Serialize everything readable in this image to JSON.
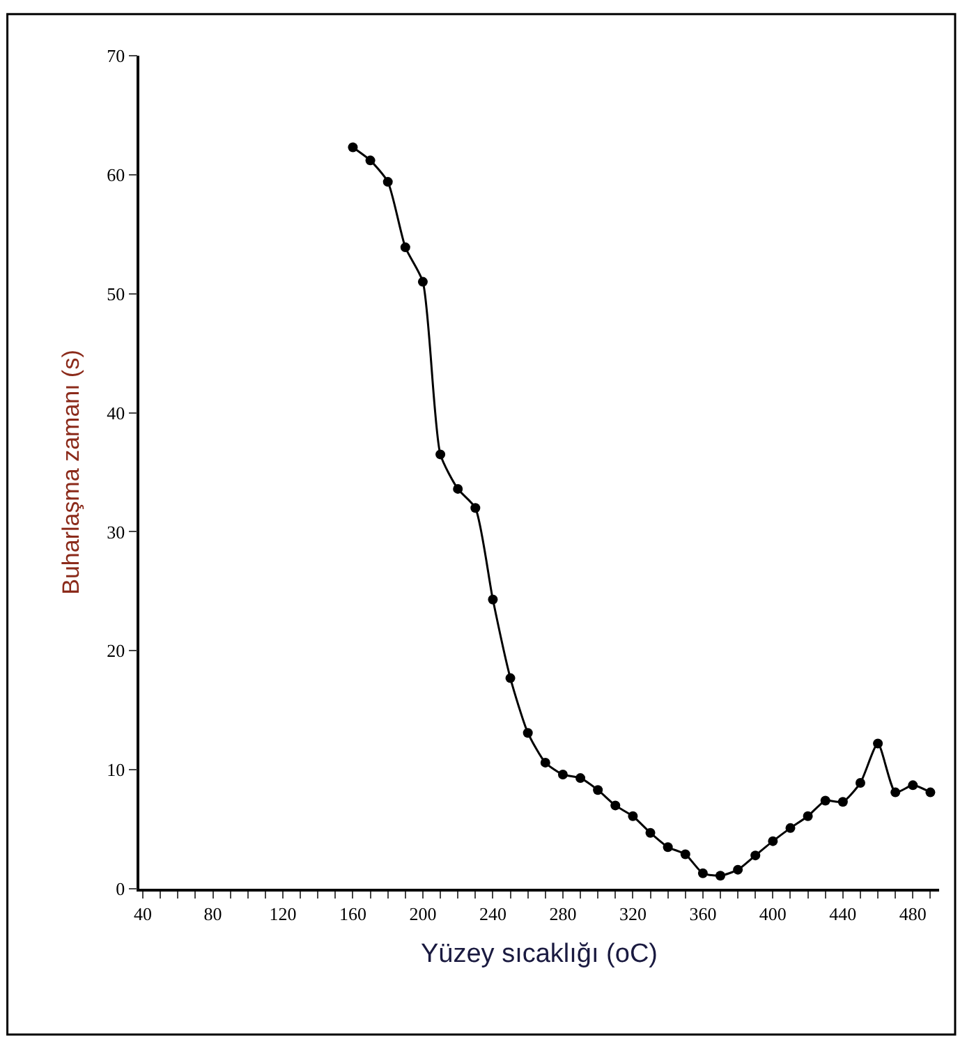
{
  "chart_data": {
    "type": "line",
    "xlabel": "Yüzey sıcaklığı (oC)",
    "ylabel": "Buharlaşma zamanı (s)",
    "x": [
      160,
      170,
      180,
      190,
      200,
      210,
      220,
      230,
      240,
      250,
      260,
      270,
      280,
      290,
      300,
      310,
      320,
      330,
      340,
      350,
      360,
      370,
      380,
      390,
      400,
      410,
      420,
      430,
      440,
      450,
      460,
      470,
      480,
      490
    ],
    "series": [
      {
        "color": "#000000",
        "values": [
          62.3,
          61.2,
          59.4,
          53.9,
          51,
          36.5,
          33.6,
          32,
          24.3,
          17.7,
          13.1,
          10.6,
          9.6,
          9.3,
          8.3,
          7.0,
          6.1,
          4.7,
          3.5,
          2.9,
          1.3,
          1.1,
          1.6,
          2.8,
          4.0,
          5.1,
          6.1,
          7.4,
          7.3,
          8.9,
          12.2,
          8.1,
          8.7,
          8.1
        ]
      }
    ],
    "xlim": [
      38,
      495
    ],
    "ylim": [
      0,
      70
    ],
    "xticks": [
      40,
      {
        "value": 50,
        "label": null
      },
      {
        "value": 60,
        "label": null
      },
      {
        "value": 70,
        "label": null
      },
      80,
      {
        "value": 90,
        "label": null
      },
      {
        "value": 100,
        "label": null
      },
      {
        "value": 110,
        "label": null
      },
      120,
      {
        "value": 130,
        "label": null
      },
      {
        "value": 140,
        "label": null
      },
      {
        "value": 150,
        "label": null
      },
      160,
      {
        "value": 170,
        "label": null
      },
      {
        "value": 180,
        "label": null
      },
      {
        "value": 190,
        "label": null
      },
      200,
      {
        "value": 210,
        "label": null
      },
      {
        "value": 220,
        "label": null
      },
      {
        "value": 230,
        "label": null
      },
      240,
      {
        "value": 250,
        "label": null
      },
      {
        "value": 260,
        "label": null
      },
      {
        "value": 270,
        "label": null
      },
      280,
      {
        "value": 290,
        "label": null
      },
      {
        "value": 300,
        "label": null
      },
      {
        "value": 310,
        "label": null
      },
      320,
      {
        "value": 330,
        "label": null
      },
      {
        "value": 340,
        "label": null
      },
      {
        "value": 350,
        "label": null
      },
      360,
      {
        "value": 370,
        "label": null
      },
      {
        "value": 380,
        "label": null
      },
      {
        "value": 390,
        "label": null
      },
      400,
      {
        "value": 410,
        "label": null
      },
      {
        "value": 420,
        "label": null
      },
      {
        "value": 430,
        "label": null
      },
      440,
      {
        "value": 450,
        "label": null
      },
      {
        "value": 460,
        "label": null
      },
      {
        "value": 470,
        "label": null
      },
      480,
      {
        "value": 490,
        "label": null
      }
    ],
    "yticks": [
      0,
      10,
      20,
      30,
      40,
      50,
      60,
      70
    ],
    "marker": "circle",
    "line_style": "solid"
  }
}
